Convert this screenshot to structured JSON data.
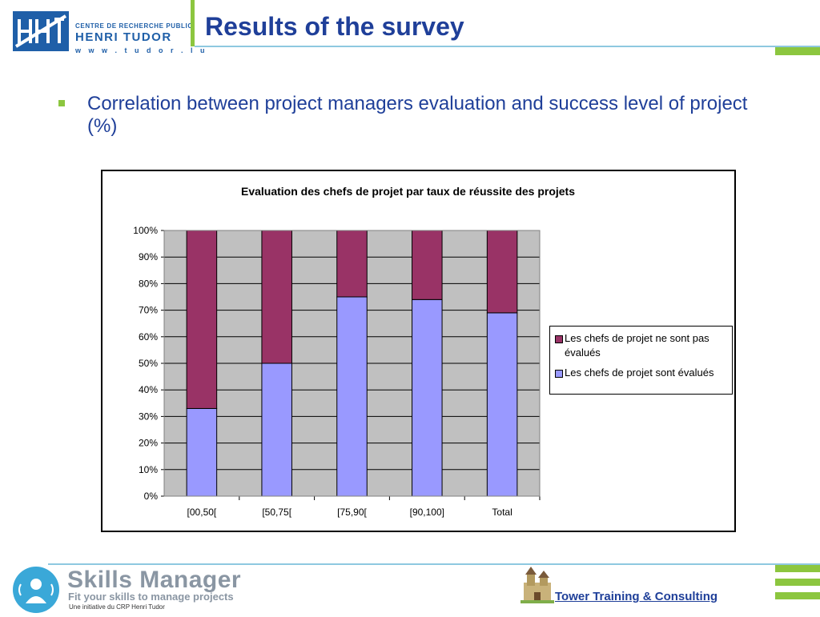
{
  "header": {
    "logo": {
      "small_text": "CENTRE DE RECHERCHE PUBLIC",
      "big_text": "HENRI TUDOR",
      "url": "w w w . t u d o r . l u"
    },
    "title": "Results of the survey"
  },
  "bullet": {
    "text": "Correlation between project managers evaluation and success level of project (%)"
  },
  "chart_data": {
    "type": "bar",
    "stacked": true,
    "percent": true,
    "title": "Evaluation des chefs de projet par taux de réussite des projets",
    "categories": [
      "[00,50[",
      "[50,75[",
      "[75,90[",
      "[90,100]",
      "Total"
    ],
    "series": [
      {
        "name": "Les chefs de projet sont évalués",
        "values": [
          33,
          50,
          75,
          74,
          69
        ],
        "color": "#9999ff"
      },
      {
        "name": "Les chefs de projet ne sont pas évalués",
        "values": [
          67,
          50,
          25,
          26,
          31
        ],
        "color": "#993366"
      }
    ],
    "ylim": [
      0,
      100
    ],
    "yticks": [
      "0%",
      "10%",
      "20%",
      "30%",
      "40%",
      "50%",
      "60%",
      "70%",
      "80%",
      "90%",
      "100%"
    ],
    "grid": true,
    "plot_background": "#c0c0c0",
    "legend": {
      "position": "right",
      "items": [
        {
          "label": "Les chefs de projet ne sont pas évalués",
          "color": "#993366"
        },
        {
          "label": "Les chefs de projet sont évalués",
          "color": "#9999ff"
        }
      ]
    }
  },
  "footer": {
    "skills_title": "Skills Manager",
    "skills_subtitle": "Fit your skills to manage projects",
    "skills_initiative": "Une initiative du CRP Henri Tudor",
    "ttc_label": "Tower Training & Consulting",
    "colors": {
      "accent_green": "#8cc63f",
      "title_blue": "#1f3f99",
      "line_blue": "#8ec8e0"
    }
  }
}
